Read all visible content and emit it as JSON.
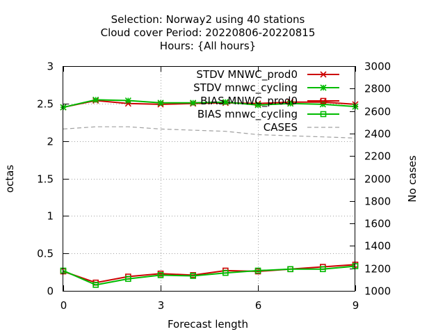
{
  "chart_data": {
    "type": "line",
    "title_lines": [
      "Selection: Norway2 using    40 stations",
      "Cloud cover   Period: 20220806-20220815",
      "Hours: {All hours}"
    ],
    "xlabel": "Forecast length",
    "ylabel": "octas",
    "y2label": "No cases",
    "xlim": [
      0,
      9
    ],
    "ylim": [
      0,
      3
    ],
    "y2lim": [
      1000,
      3000
    ],
    "xticks": [
      "0",
      "3",
      "6",
      "9"
    ],
    "xtick_values": [
      0,
      3,
      6,
      9
    ],
    "yticks": [
      "0",
      "0.5",
      "1",
      "1.5",
      "2",
      "2.5",
      "3"
    ],
    "ytick_values": [
      0,
      0.5,
      1,
      1.5,
      2,
      2.5,
      3
    ],
    "y2ticks": [
      "1000",
      "1200",
      "1400",
      "1600",
      "1800",
      "2000",
      "2200",
      "2400",
      "2600",
      "2800",
      "3000"
    ],
    "y2tick_values": [
      1000,
      1200,
      1400,
      1600,
      1800,
      2000,
      2200,
      2400,
      2600,
      2800,
      3000
    ],
    "grid": true,
    "legend_position": "top-right",
    "x": [
      0,
      1,
      2,
      3,
      4,
      5,
      6,
      7,
      8,
      9
    ],
    "series": [
      {
        "name": "STDV MNWC_prod0",
        "color": "#cc0000",
        "marker": "x",
        "axis": "y",
        "values": [
          2.45,
          2.54,
          2.5,
          2.49,
          2.5,
          2.51,
          2.5,
          2.52,
          2.52,
          2.49
        ]
      },
      {
        "name": "STDV mnwc_cycling",
        "color": "#00bb00",
        "marker": "asterisk",
        "axis": "y",
        "values": [
          2.45,
          2.55,
          2.54,
          2.51,
          2.51,
          2.52,
          2.48,
          2.5,
          2.49,
          2.46
        ]
      },
      {
        "name": "BIAS MNWC_prod0",
        "color": "#cc0000",
        "marker": "square",
        "axis": "y",
        "values": [
          0.26,
          0.11,
          0.19,
          0.23,
          0.21,
          0.27,
          0.26,
          0.29,
          0.32,
          0.35
        ]
      },
      {
        "name": "BIAS mnwc_cycling",
        "color": "#00bb00",
        "marker": "square",
        "axis": "y",
        "values": [
          0.27,
          0.08,
          0.16,
          0.21,
          0.2,
          0.24,
          0.27,
          0.29,
          0.29,
          0.33
        ]
      },
      {
        "name": "CASES",
        "color": "#a0a0a0",
        "marker": "none",
        "dashed": true,
        "axis": "y2",
        "values": [
          2440,
          2460,
          2460,
          2440,
          2430,
          2420,
          2390,
          2380,
          2370,
          2360
        ]
      }
    ]
  }
}
